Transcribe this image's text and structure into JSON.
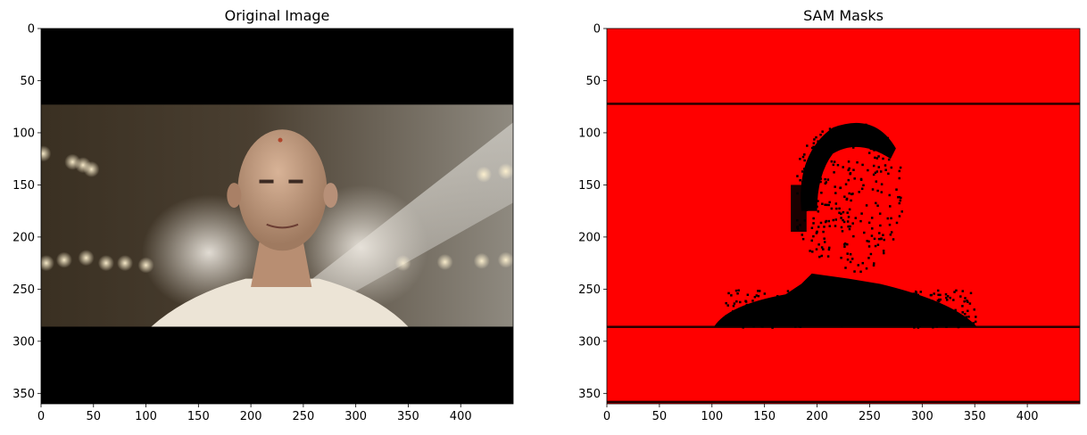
{
  "chart_data": [
    {
      "type": "image",
      "title": "Original Image",
      "xlim": [
        0,
        450
      ],
      "ylim": [
        360,
        0
      ],
      "x_ticks": [
        0,
        50,
        100,
        150,
        200,
        250,
        300,
        350,
        400
      ],
      "y_ticks": [
        0,
        50,
        100,
        150,
        200,
        250,
        300,
        350
      ],
      "image": {
        "letterbox_color": "#000000",
        "content_rows": [
          73,
          286
        ],
        "scene_colors": [
          "#2a241b",
          "#6b5d4a",
          "#d9d2c6",
          "#c9a286",
          "#f1e7d8"
        ]
      }
    },
    {
      "type": "image",
      "title": "SAM Masks",
      "xlim": [
        0,
        450
      ],
      "ylim": [
        360,
        0
      ],
      "x_ticks": [
        0,
        50,
        100,
        150,
        200,
        250,
        300,
        350,
        400
      ],
      "y_ticks": [
        0,
        50,
        100,
        150,
        200,
        250,
        300,
        350
      ],
      "image": {
        "mask_color": "#ff0000",
        "background_color": "#000000",
        "line_rows": [
          72,
          286,
          358
        ]
      }
    }
  ]
}
